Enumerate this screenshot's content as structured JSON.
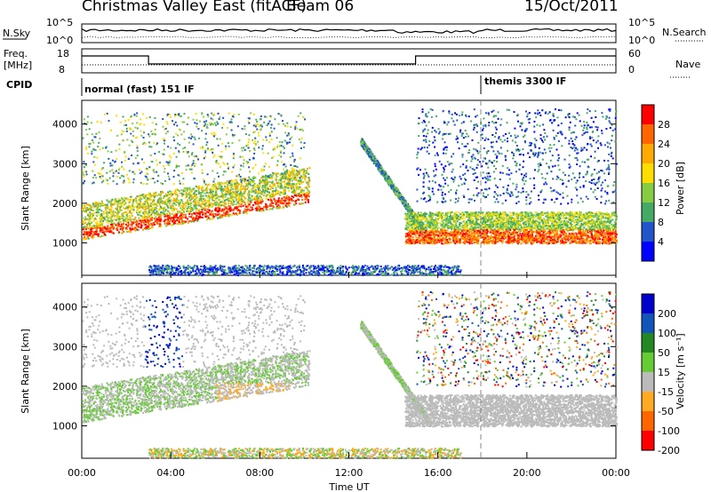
{
  "header": {
    "title": "Christmas Valley East (fitACF)",
    "beam": "Beam 06",
    "date": "15/Oct/2011"
  },
  "top_panels": {
    "nsky_label": "N.Sky",
    "nsearch_label": "N.Search",
    "nsky_ticks": [
      "10^5",
      "10^0"
    ],
    "freq_label_1": "Freq.",
    "freq_label_2": "[MHz]",
    "freq_ticks": [
      "18",
      "8"
    ],
    "nave_label": "Nave",
    "nave_ticks": [
      "60",
      "0"
    ],
    "cpid_label": "CPID",
    "cpid_1": "normal (fast) 151 IF",
    "cpid_2": "themis 3300 IF"
  },
  "colorbars": {
    "power": {
      "label": "Power [dB]",
      "ticks": [
        "28",
        "24",
        "20",
        "16",
        "12",
        "8",
        "4"
      ],
      "colors": [
        "#ff0000",
        "#ff6600",
        "#ffaa00",
        "#ffdd00",
        "#88cc44",
        "#44aa66",
        "#2255cc",
        "#0000ff"
      ]
    },
    "velocity": {
      "label": "Velocity [m s⁻¹]",
      "ticks": [
        "200",
        "100",
        "50",
        "15",
        "-15",
        "-50",
        "-100",
        "-200"
      ],
      "colors": [
        "#0000cc",
        "#1155bb",
        "#228822",
        "#66cc33",
        "#bbbbbb",
        "#ffaa22",
        "#ff6600",
        "#ff0000"
      ]
    }
  },
  "chart_data": [
    {
      "type": "heatmap",
      "title": "",
      "xlabel": "Time UT",
      "ylabel": "Slant Range [km]",
      "x_ticks": [
        "00:00",
        "04:00",
        "08:00",
        "12:00",
        "16:00",
        "20:00",
        "00:00"
      ],
      "xlim_hours": [
        0,
        24
      ],
      "y_ticks": [
        1000,
        2000,
        3000,
        4000
      ],
      "ylim": [
        180,
        4600
      ],
      "quantity": "Power [dB]",
      "features": [
        {
          "name": "near-range band",
          "time_range": [
            0,
            10.2
          ],
          "range_km": [
            1000,
            2200
          ],
          "power_db": 24
        },
        {
          "name": "dusk band",
          "time_range": [
            14,
            24
          ],
          "range_km": [
            1000,
            1400
          ],
          "power_db": 28
        },
        {
          "name": "ground scatter arc",
          "time_range": [
            12.5,
            15.5
          ],
          "range_km": [
            1000,
            3500
          ],
          "power_db": 12
        }
      ]
    },
    {
      "type": "heatmap",
      "title": "",
      "xlabel": "Time UT",
      "ylabel": "Slant Range [km]",
      "x_ticks": [
        "00:00",
        "04:00",
        "08:00",
        "12:00",
        "16:00",
        "20:00",
        "00:00"
      ],
      "xlim_hours": [
        0,
        24
      ],
      "y_ticks": [
        1000,
        2000,
        3000,
        4000
      ],
      "ylim": [
        180,
        4600
      ],
      "quantity": "Velocity [m s⁻¹]",
      "features": [
        {
          "name": "low-velocity band",
          "time_range": [
            14.5,
            24
          ],
          "range_km": [
            1100,
            1800
          ],
          "velocity": 0
        },
        {
          "name": "westward flow patch",
          "time_range": [
            6,
            9.5
          ],
          "range_km": [
            1700,
            2100
          ],
          "velocity": -50
        },
        {
          "name": "eastward flow patch",
          "time_range": [
            2.8,
            4.5
          ],
          "range_km": [
            2700,
            3500
          ],
          "velocity": 200
        }
      ]
    }
  ]
}
